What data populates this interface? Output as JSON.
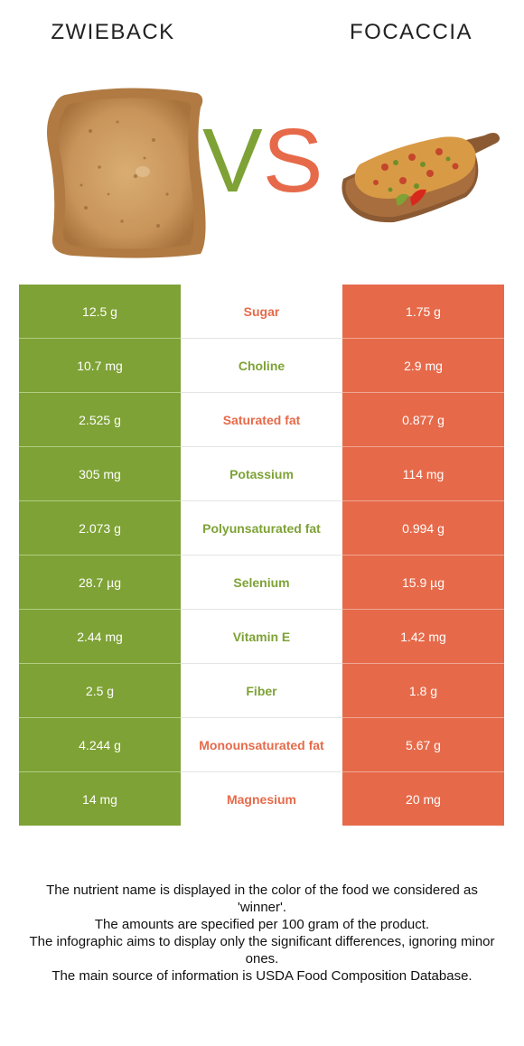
{
  "header": {
    "left_title": "ZWIEBACK",
    "right_title": "FOCACCIA",
    "vs_v": "V",
    "vs_s": "S"
  },
  "colors": {
    "left_food": "#7ea235",
    "right_food": "#e66a4a"
  },
  "rows": [
    {
      "left": "12.5 g",
      "nutrient": "Sugar",
      "right": "1.75 g",
      "winner": "right"
    },
    {
      "left": "10.7 mg",
      "nutrient": "Choline",
      "right": "2.9 mg",
      "winner": "left"
    },
    {
      "left": "2.525 g",
      "nutrient": "Saturated fat",
      "right": "0.877 g",
      "winner": "right"
    },
    {
      "left": "305 mg",
      "nutrient": "Potassium",
      "right": "114 mg",
      "winner": "left"
    },
    {
      "left": "2.073 g",
      "nutrient": "Polyunsaturated fat",
      "right": "0.994 g",
      "winner": "left"
    },
    {
      "left": "28.7 µg",
      "nutrient": "Selenium",
      "right": "15.9 µg",
      "winner": "left"
    },
    {
      "left": "2.44 mg",
      "nutrient": "Vitamin E",
      "right": "1.42 mg",
      "winner": "left"
    },
    {
      "left": "2.5 g",
      "nutrient": "Fiber",
      "right": "1.8 g",
      "winner": "left"
    },
    {
      "left": "4.244 g",
      "nutrient": "Monounsaturated fat",
      "right": "5.67 g",
      "winner": "right"
    },
    {
      "left": "14 mg",
      "nutrient": "Magnesium",
      "right": "20 mg",
      "winner": "right"
    }
  ],
  "footer": [
    "The nutrient name is displayed in the color of the food we considered as 'winner'.",
    "The amounts are specified per 100 gram of the product.",
    "The infographic aims to display only the significant differences, ignoring minor ones.",
    "The main source of information is USDA Food Composition Database."
  ]
}
